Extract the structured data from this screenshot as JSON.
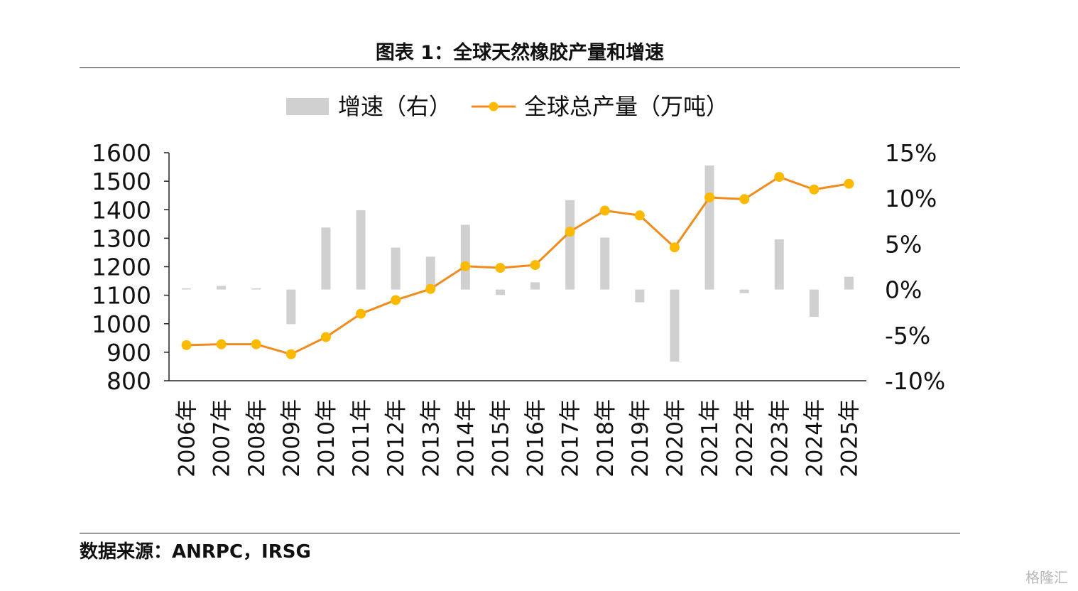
{
  "title": "图表 1：全球天然橡胶产量和增速",
  "source": "数据来源：ANRPC，IRSG",
  "watermark": "格隆汇",
  "colors": {
    "bar": "#d0d0d0",
    "line": "#f08c1e",
    "marker": "#fbb900",
    "axis": "#222222"
  },
  "chart_data": {
    "type": "bar+line",
    "categories": [
      "2006年",
      "2007年",
      "2008年",
      "2009年",
      "2010年",
      "2011年",
      "2012年",
      "2013年",
      "2014年",
      "2015年",
      "2016年",
      "2017年",
      "2018年",
      "2019年",
      "2020年",
      "2021年",
      "2022年",
      "2023年",
      "2024年",
      "2025年"
    ],
    "series": [
      {
        "name": "增速（右）",
        "type": "bar",
        "axis": "right",
        "values": [
          0.0,
          0.4,
          0.0,
          -3.8,
          6.8,
          8.7,
          4.6,
          3.6,
          7.1,
          -0.6,
          0.8,
          9.8,
          5.7,
          -1.4,
          -7.9,
          13.6,
          -0.4,
          5.5,
          -3.0,
          1.4
        ]
      },
      {
        "name": "全球总产量（万吨）",
        "type": "line",
        "axis": "left",
        "values": [
          925,
          928,
          928,
          893,
          953,
          1035,
          1083,
          1122,
          1202,
          1196,
          1206,
          1323,
          1397,
          1380,
          1268,
          1443,
          1437,
          1515,
          1471,
          1491
        ]
      }
    ],
    "left_axis": {
      "ylim": [
        800,
        1600
      ],
      "ticks": [
        "800",
        "900",
        "1000",
        "1100",
        "1200",
        "1300",
        "1400",
        "1500",
        "1600"
      ]
    },
    "right_axis": {
      "ylim": [
        -10,
        15
      ],
      "ticks": [
        "-10%",
        "-5%",
        "0%",
        "5%",
        "10%",
        "15%"
      ]
    },
    "legend": {
      "placement": "top",
      "entries": [
        "增速（右）",
        "全球总产量（万吨）"
      ]
    },
    "grid": false
  }
}
